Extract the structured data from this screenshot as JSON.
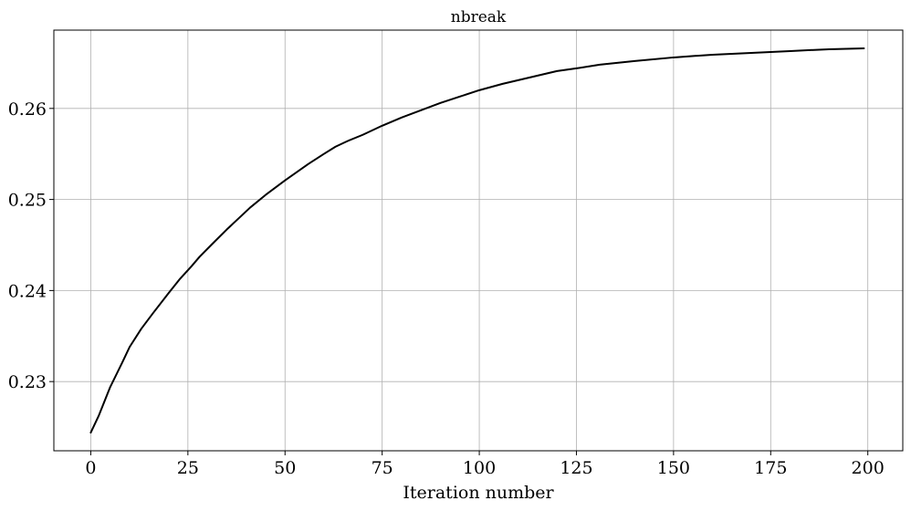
{
  "chart_data": {
    "type": "line",
    "title": "nbreak",
    "xlabel": "Iteration number",
    "ylabel": "",
    "xlim": [
      -9.5,
      209
    ],
    "ylim": [
      0.2224,
      0.2686
    ],
    "grid": true,
    "xticks": [
      0,
      25,
      50,
      75,
      100,
      125,
      150,
      175,
      200
    ],
    "xtick_labels": [
      "0",
      "25",
      "50",
      "75",
      "100",
      "125",
      "150",
      "175",
      "200"
    ],
    "yticks": [
      0.23,
      0.24,
      0.25,
      0.26
    ],
    "ytick_labels": [
      "0.23",
      "0.24",
      "0.25",
      "0.26"
    ],
    "series": [
      {
        "color": "#000000",
        "x": [
          0,
          2,
          5,
          8,
          10,
          13,
          16,
          20,
          23,
          26,
          28,
          31,
          35,
          38,
          41,
          45,
          50,
          56,
          60,
          63,
          66,
          70,
          75,
          80,
          85,
          90,
          95,
          100,
          106,
          110,
          115,
          120,
          125,
          131,
          140,
          150,
          160,
          170,
          180,
          190,
          199
        ],
        "y": [
          0.2244,
          0.2262,
          0.2294,
          0.232,
          0.2338,
          0.2358,
          0.2375,
          0.2397,
          0.2413,
          0.2427,
          0.2437,
          0.245,
          0.2467,
          0.2479,
          0.2491,
          0.2505,
          0.2521,
          0.2539,
          0.255,
          0.2558,
          0.2564,
          0.2571,
          0.2581,
          0.259,
          0.2598,
          0.2606,
          0.2613,
          0.262,
          0.2627,
          0.2631,
          0.2636,
          0.2641,
          0.2644,
          0.2648,
          0.2652,
          0.2656,
          0.2659,
          0.2661,
          0.2663,
          0.2665,
          0.2666
        ]
      }
    ]
  }
}
